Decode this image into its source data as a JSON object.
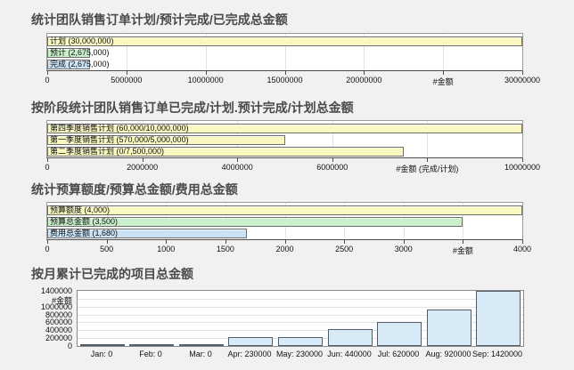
{
  "colors": {
    "page_bg": "#f1f1f1",
    "title_text": "#4a4a4a",
    "plot_bg": "#ffffff",
    "plot_border": "#9a9a9a",
    "axis_line": "#4d4d4d",
    "gridline": "#e2e2e2",
    "bar_yellow": "#f8f8c0",
    "bar_green": "#c9f0cb",
    "bar_blue": "#c9e2f5",
    "bar_border": "#6e6e6e",
    "month_bar_fill": "#d9eaf7",
    "month_bar_border": "#4f5e6a"
  },
  "chart_data": [
    {
      "type": "bar",
      "orientation": "horizontal",
      "title": "统计团队销售订单计划/预计完成/已完成总金额",
      "xlabel": "#金额",
      "xlim": [
        0,
        30000000
      ],
      "grid": true,
      "bars": [
        {
          "name": "计划",
          "label": "计划 (30,000,000)",
          "value": 30000000,
          "color": "#f8f8c0"
        },
        {
          "name": "预计",
          "label": "预计 (2,675,000)",
          "value": 2675000,
          "color": "#c9f0cb"
        },
        {
          "name": "完成",
          "label": "完成 (2,675,000)",
          "value": 2675000,
          "color": "#c9e2f5"
        }
      ],
      "ticks": [
        {
          "value": 0,
          "label": "0"
        },
        {
          "value": 5000000,
          "label": "5000000"
        },
        {
          "value": 10000000,
          "label": "10000000"
        },
        {
          "value": 15000000,
          "label": "15000000"
        },
        {
          "value": 20000000,
          "label": "20000000"
        },
        {
          "value": 25000000,
          "label": "#金额"
        },
        {
          "value": 30000000,
          "label": "30000000"
        }
      ]
    },
    {
      "type": "bar",
      "orientation": "horizontal",
      "title": "按阶段统计团队销售订单已完成/计划.预计完成/计划总金额",
      "xlabel": "#金额 (完成/计划)",
      "xlim": [
        0,
        10000000
      ],
      "grid": true,
      "bars": [
        {
          "name": "第四季度销售计划",
          "label": "第四季度销售计划 (60,000/10,000,000)",
          "value": 10000000,
          "color": "#f8f8c0"
        },
        {
          "name": "第一季度销售计划",
          "label": "第一季度销售计划 (570,000/5,000,000)",
          "value": 5000000,
          "color": "#f8f8c0"
        },
        {
          "name": "第二季度销售计划",
          "label": "第二季度销售计划 (0/7,500,000)",
          "value": 7500000,
          "color": "#f8f8c0"
        }
      ],
      "ticks": [
        {
          "value": 0,
          "label": "0"
        },
        {
          "value": 2000000,
          "label": "2000000"
        },
        {
          "value": 4000000,
          "label": "4000000"
        },
        {
          "value": 6000000,
          "label": "6000000"
        },
        {
          "value": 8000000,
          "label": "#金额 (完成/计划)"
        },
        {
          "value": 10000000,
          "label": "10000000"
        }
      ]
    },
    {
      "type": "bar",
      "orientation": "horizontal",
      "title": "统计预算额度/预算总金额/费用总金额",
      "xlabel": "#金额",
      "xlim": [
        0,
        4000
      ],
      "grid": true,
      "bars": [
        {
          "name": "预算额度",
          "label": "预算额度 (4,000)",
          "value": 4000,
          "color": "#f8f8c0"
        },
        {
          "name": "预算总金额",
          "label": "预算总金额 (3,500)",
          "value": 3500,
          "color": "#c9f0cb"
        },
        {
          "name": "费用总金额",
          "label": "费用总金额 (1,680)",
          "value": 1680,
          "color": "#c9e2f5"
        }
      ],
      "ticks": [
        {
          "value": 0,
          "label": "0"
        },
        {
          "value": 500,
          "label": "500"
        },
        {
          "value": 1000,
          "label": "1000"
        },
        {
          "value": 1500,
          "label": "1500"
        },
        {
          "value": 2000,
          "label": "2000"
        },
        {
          "value": 2500,
          "label": "2500"
        },
        {
          "value": 3000,
          "label": "3000"
        },
        {
          "value": 3500,
          "label": "#金额"
        },
        {
          "value": 4000,
          "label": "4000"
        }
      ]
    },
    {
      "type": "bar",
      "orientation": "vertical",
      "title": "按月累计已完成的项目总金额",
      "ylabel": "#金额",
      "ylim": [
        0,
        1400000
      ],
      "grid": true,
      "bar_color": "#d9eaf7",
      "categories": [
        "Jan",
        "Feb",
        "Mar",
        "Apr",
        "May",
        "Jun",
        "Jul",
        "Aug",
        "Sep"
      ],
      "values": [
        0,
        0,
        0,
        230000,
        230000,
        440000,
        620000,
        920000,
        1420000
      ],
      "bar_labels": [
        "Jan: 0",
        "Feb: 0",
        "Mar: 0",
        "Apr: 230000",
        "May: 230000",
        "Jun: 440000",
        "Jul: 620000",
        "Aug: 920000",
        "Sep: 1420000"
      ],
      "y_ticks": [
        {
          "value": 1400000,
          "label": "1400000"
        },
        {
          "value": 1200000,
          "label": "#金额"
        },
        {
          "value": 1000000,
          "label": "1000000"
        },
        {
          "value": 800000,
          "label": "800000"
        },
        {
          "value": 600000,
          "label": "600000"
        },
        {
          "value": 400000,
          "label": "400000"
        },
        {
          "value": 200000,
          "label": "200000"
        },
        {
          "value": 0,
          "label": "0"
        }
      ]
    }
  ]
}
